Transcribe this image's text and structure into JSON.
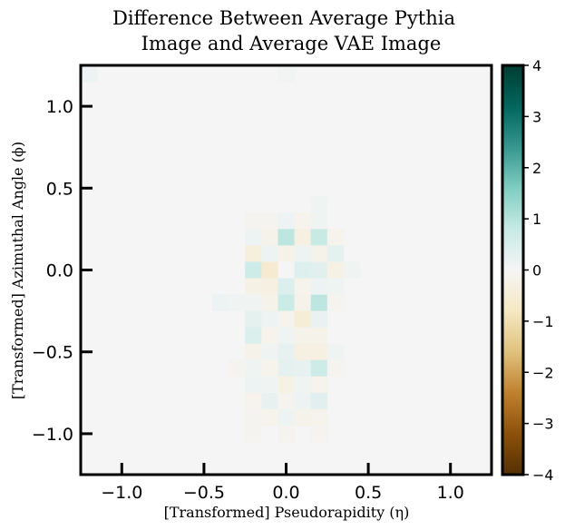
{
  "chart_data": {
    "type": "heatmap",
    "title_lines": [
      "Difference Between Average Pythia",
      "Image and Average VAE Image"
    ],
    "xlabel": "[Transformed] Pseudorapidity (η)",
    "ylabel": "[Transformed] Azimuthal Angle (ϕ)",
    "xlim": [
      -1.25,
      1.25
    ],
    "ylim": [
      -1.25,
      1.25
    ],
    "xticks": [
      -1.0,
      -0.5,
      0.0,
      0.5,
      1.0
    ],
    "xtick_labels": [
      "−1.0",
      "−0.5",
      "0.0",
      "0.5",
      "1.0"
    ],
    "yticks": [
      1.0,
      0.5,
      0.0,
      -0.5,
      -1.0
    ],
    "ytick_labels": [
      "1.0",
      "0.5",
      "0.0",
      "−0.5",
      "−1.0"
    ],
    "colorbar": {
      "min": -4,
      "max": 4,
      "ticks": [
        4,
        3,
        2,
        1,
        0,
        -1,
        -2,
        -3,
        -4
      ],
      "tick_labels": [
        "4",
        "3",
        "2",
        "1",
        "0",
        "−1",
        "−2",
        "−3",
        "−4"
      ],
      "colormap": "BrBG",
      "stops": [
        "#543005",
        "#8c510a",
        "#bf812d",
        "#dfc27d",
        "#f6e8c3",
        "#f5f5f5",
        "#c7eae5",
        "#80cdc1",
        "#35978f",
        "#01665e",
        "#003c30"
      ]
    },
    "grid_bins": 25,
    "bin_width": 0.1,
    "background_value": 0.0,
    "cells": [
      {
        "x": -1.2,
        "y": 1.2,
        "v": 0.15
      },
      {
        "x": 0.0,
        "y": 1.2,
        "v": 0.05
      },
      {
        "x": 0.2,
        "y": 0.4,
        "v": 0.1
      },
      {
        "x": -0.2,
        "y": 0.3,
        "v": -0.1
      },
      {
        "x": -0.1,
        "y": 0.3,
        "v": -0.1
      },
      {
        "x": 0.0,
        "y": 0.3,
        "v": 0.15
      },
      {
        "x": 0.1,
        "y": 0.3,
        "v": -0.15
      },
      {
        "x": 0.2,
        "y": 0.3,
        "v": 0.1
      },
      {
        "x": -0.2,
        "y": 0.2,
        "v": 0.15
      },
      {
        "x": -0.1,
        "y": 0.2,
        "v": -0.2
      },
      {
        "x": 0.0,
        "y": 0.2,
        "v": 0.9
      },
      {
        "x": 0.1,
        "y": 0.2,
        "v": -0.3
      },
      {
        "x": 0.2,
        "y": 0.2,
        "v": 0.8
      },
      {
        "x": 0.3,
        "y": 0.2,
        "v": -0.15
      },
      {
        "x": -0.2,
        "y": 0.1,
        "v": -0.4
      },
      {
        "x": -0.1,
        "y": 0.1,
        "v": 0.15
      },
      {
        "x": 0.0,
        "y": 0.1,
        "v": -0.2
      },
      {
        "x": 0.1,
        "y": 0.1,
        "v": 0.15
      },
      {
        "x": 0.2,
        "y": 0.1,
        "v": -0.2
      },
      {
        "x": 0.3,
        "y": 0.1,
        "v": 0.3
      },
      {
        "x": -0.2,
        "y": 0.0,
        "v": 0.7
      },
      {
        "x": -0.1,
        "y": 0.0,
        "v": -0.6
      },
      {
        "x": 0.0,
        "y": 0.0,
        "v": 0.0
      },
      {
        "x": 0.1,
        "y": 0.0,
        "v": 0.4
      },
      {
        "x": 0.2,
        "y": 0.0,
        "v": 0.35
      },
      {
        "x": 0.3,
        "y": 0.0,
        "v": -0.25
      },
      {
        "x": 0.4,
        "y": 0.0,
        "v": 0.1
      },
      {
        "x": -0.2,
        "y": -0.1,
        "v": -0.25
      },
      {
        "x": -0.1,
        "y": -0.1,
        "v": -0.3
      },
      {
        "x": 0.0,
        "y": -0.1,
        "v": 0.45
      },
      {
        "x": 0.1,
        "y": -0.1,
        "v": -0.15
      },
      {
        "x": 0.2,
        "y": -0.1,
        "v": 0.15
      },
      {
        "x": 0.3,
        "y": -0.1,
        "v": 0.1
      },
      {
        "x": -0.4,
        "y": -0.2,
        "v": 0.15
      },
      {
        "x": -0.3,
        "y": -0.2,
        "v": 0.1
      },
      {
        "x": -0.2,
        "y": -0.2,
        "v": 0.1
      },
      {
        "x": -0.1,
        "y": -0.2,
        "v": -0.2
      },
      {
        "x": 0.0,
        "y": -0.2,
        "v": 0.75
      },
      {
        "x": 0.1,
        "y": -0.2,
        "v": -0.2
      },
      {
        "x": 0.2,
        "y": -0.2,
        "v": 0.9
      },
      {
        "x": 0.3,
        "y": -0.2,
        "v": -0.1
      },
      {
        "x": -0.2,
        "y": -0.3,
        "v": 0.3
      },
      {
        "x": -0.1,
        "y": -0.3,
        "v": 0.15
      },
      {
        "x": 0.0,
        "y": -0.3,
        "v": -0.15
      },
      {
        "x": 0.1,
        "y": -0.3,
        "v": -0.5
      },
      {
        "x": 0.2,
        "y": -0.3,
        "v": 0.2
      },
      {
        "x": -0.2,
        "y": -0.4,
        "v": 0.45
      },
      {
        "x": -0.1,
        "y": -0.4,
        "v": -0.15
      },
      {
        "x": 0.0,
        "y": -0.4,
        "v": 0.1
      },
      {
        "x": 0.1,
        "y": -0.4,
        "v": -0.2
      },
      {
        "x": 0.2,
        "y": -0.4,
        "v": -0.2
      },
      {
        "x": -0.2,
        "y": -0.5,
        "v": -0.2
      },
      {
        "x": -0.1,
        "y": -0.5,
        "v": 0.1
      },
      {
        "x": 0.0,
        "y": -0.5,
        "v": 0.25
      },
      {
        "x": 0.1,
        "y": -0.5,
        "v": -0.3
      },
      {
        "x": 0.2,
        "y": -0.5,
        "v": -0.3
      },
      {
        "x": 0.3,
        "y": -0.5,
        "v": 0.1
      },
      {
        "x": -0.3,
        "y": -0.6,
        "v": -0.1
      },
      {
        "x": -0.2,
        "y": -0.6,
        "v": 0.1
      },
      {
        "x": -0.1,
        "y": -0.6,
        "v": -0.15
      },
      {
        "x": 0.0,
        "y": -0.6,
        "v": 0.3
      },
      {
        "x": 0.1,
        "y": -0.6,
        "v": 0.25
      },
      {
        "x": 0.2,
        "y": -0.6,
        "v": 0.7
      },
      {
        "x": 0.3,
        "y": -0.6,
        "v": -0.1
      },
      {
        "x": -0.2,
        "y": -0.7,
        "v": 0.15
      },
      {
        "x": -0.1,
        "y": -0.7,
        "v": 0.1
      },
      {
        "x": 0.0,
        "y": -0.7,
        "v": -0.25
      },
      {
        "x": 0.1,
        "y": -0.7,
        "v": 0.1
      },
      {
        "x": 0.2,
        "y": -0.7,
        "v": -0.15
      },
      {
        "x": -0.2,
        "y": -0.8,
        "v": -0.15
      },
      {
        "x": -0.1,
        "y": -0.8,
        "v": 0.25
      },
      {
        "x": 0.0,
        "y": -0.8,
        "v": -0.1
      },
      {
        "x": 0.1,
        "y": -0.8,
        "v": 0.15
      },
      {
        "x": 0.2,
        "y": -0.8,
        "v": 0.35
      },
      {
        "x": -0.2,
        "y": -0.9,
        "v": -0.1
      },
      {
        "x": -0.1,
        "y": -0.9,
        "v": -0.15
      },
      {
        "x": 0.0,
        "y": -0.9,
        "v": 0.15
      },
      {
        "x": 0.1,
        "y": -0.9,
        "v": -0.2
      },
      {
        "x": 0.2,
        "y": -0.9,
        "v": -0.15
      },
      {
        "x": -0.2,
        "y": -1.0,
        "v": -0.1
      },
      {
        "x": 0.0,
        "y": -1.0,
        "v": -0.1
      },
      {
        "x": 0.2,
        "y": -1.0,
        "v": -0.1
      }
    ]
  }
}
